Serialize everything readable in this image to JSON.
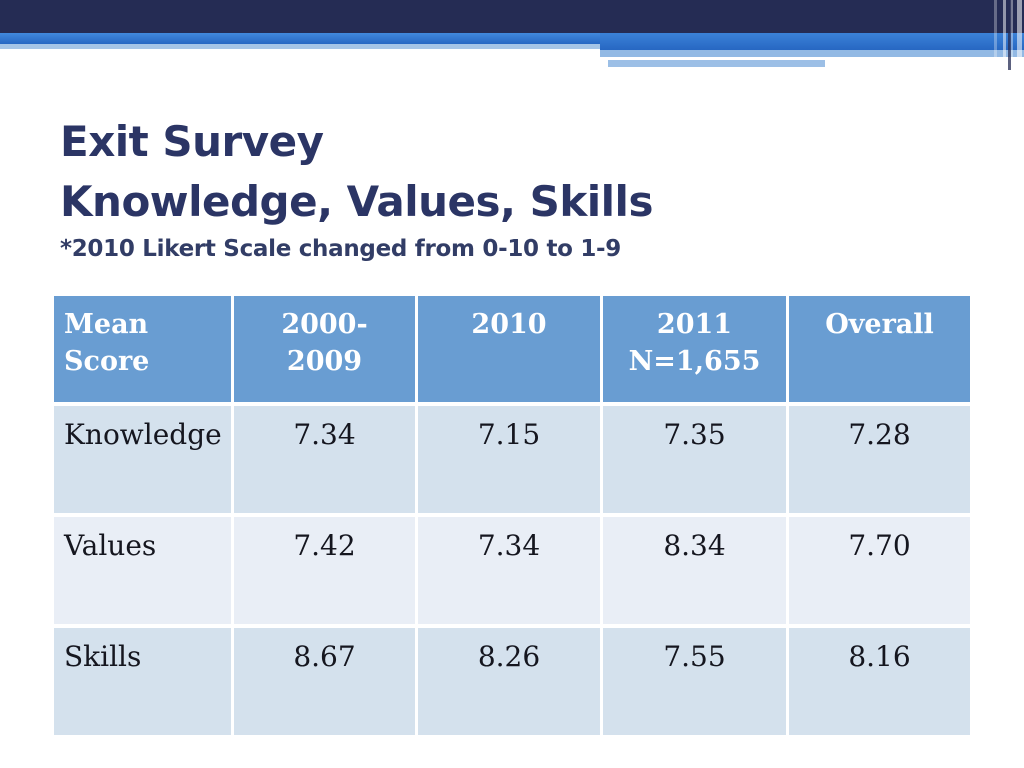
{
  "slide": {
    "title_line1": "Exit Survey",
    "title_line2": "Knowledge, Values, Skills",
    "footnote": "*2010 Likert Scale changed from 0-10 to 1-9"
  },
  "table": {
    "headers": [
      {
        "line1": "Mean",
        "line2": "Score"
      },
      {
        "line1": "2000-",
        "line2": "2009"
      },
      {
        "line1": "2010",
        "line2": ""
      },
      {
        "line1": "2011",
        "line2": "N=1,655"
      },
      {
        "line1": "Overall",
        "line2": ""
      }
    ],
    "rows": [
      {
        "label": "Knowledge",
        "values": [
          "7.34",
          "7.15",
          "7.35",
          "7.28"
        ]
      },
      {
        "label": "Values",
        "values": [
          "7.42",
          "7.34",
          "8.34",
          "7.70"
        ]
      },
      {
        "label": "Skills",
        "values": [
          "8.67",
          "8.26",
          "7.55",
          "8.16"
        ]
      }
    ]
  },
  "colors": {
    "banner_navy": "#252c54",
    "banner_blue": "#2e75cf",
    "banner_light_blue": "#a6c5e6",
    "header_cell_blue": "#699dd2",
    "row_band_dark": "#d4e1ed",
    "row_band_light": "#e9eef6",
    "title_navy": "#2b3565",
    "table_text": "#15161f"
  }
}
